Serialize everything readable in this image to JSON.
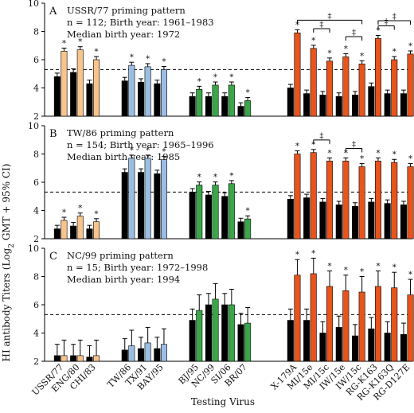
{
  "figure": {
    "y_axis_label": "HI antibody Titers (Log2 GMT + 95% CI)",
    "x_axis_label": "Testing Virus",
    "ylim": [
      2,
      10
    ],
    "y_ticks": [
      2,
      4,
      6,
      8,
      10
    ],
    "significance_marker": "*",
    "comparison_marker": "‡",
    "colors": {
      "baseline": "#000000",
      "ussr_group": "#f8c48c",
      "tw_group": "#9bbde3",
      "nc_group": "#3aa64a",
      "x179_group": "#e8541c"
    }
  },
  "chart_data": [
    {
      "type": "bar",
      "panel": "A",
      "title_lines": [
        "USSR/77 priming pattern",
        "n = 112; Birth year: 1961–1983",
        "Median birth year: 1972"
      ],
      "reference_line": 5.3,
      "groups": [
        {
          "color": "ussr_group",
          "viruses": [
            {
              "name": "USSR/77",
              "values": [
                4.8,
                6.6
              ],
              "stars": [
                false,
                true
              ]
            },
            {
              "name": "ENG/80",
              "values": [
                5.1,
                6.7
              ],
              "stars": [
                false,
                true
              ]
            },
            {
              "name": "CHI/83",
              "values": [
                4.3,
                6.0
              ],
              "stars": [
                false,
                true
              ]
            }
          ]
        },
        {
          "color": "tw_group",
          "viruses": [
            {
              "name": "TW/86",
              "values": [
                4.5,
                5.6
              ],
              "stars": [
                false,
                true
              ]
            },
            {
              "name": "TX/91",
              "values": [
                4.4,
                5.5
              ],
              "stars": [
                false,
                true
              ]
            },
            {
              "name": "BAY/95",
              "values": [
                4.3,
                5.3
              ],
              "stars": [
                false,
                true
              ]
            }
          ]
        },
        {
          "color": "nc_group",
          "viruses": [
            {
              "name": "BJ/95",
              "values": [
                3.4,
                3.9
              ],
              "stars": [
                false,
                true
              ]
            },
            {
              "name": "NC/99",
              "values": [
                3.4,
                4.2
              ],
              "stars": [
                false,
                true
              ]
            },
            {
              "name": "SI/06",
              "values": [
                3.4,
                4.2
              ],
              "stars": [
                false,
                true
              ]
            },
            {
              "name": "BR/07",
              "values": [
                2.7,
                3.1
              ],
              "stars": [
                false,
                true
              ]
            }
          ]
        },
        {
          "color": "x179_group",
          "viruses": [
            {
              "name": "X-179A",
              "values": [
                4.0,
                7.9
              ],
              "stars": [
                false,
                true
              ]
            },
            {
              "name": "MI/15e",
              "values": [
                3.6,
                6.8
              ],
              "stars": [
                false,
                true
              ]
            },
            {
              "name": "MI/15c",
              "values": [
                3.5,
                5.9
              ],
              "stars": [
                false,
                true
              ]
            },
            {
              "name": "IW/15e",
              "values": [
                3.4,
                6.2
              ],
              "stars": [
                false,
                true
              ]
            },
            {
              "name": "IW/15c",
              "values": [
                3.5,
                5.7
              ],
              "stars": [
                false,
                true
              ]
            },
            {
              "name": "RG-K163",
              "values": [
                4.1,
                7.5
              ],
              "stars": [
                false,
                true
              ]
            },
            {
              "name": "RG-K163Q",
              "values": [
                3.6,
                6.0
              ],
              "stars": [
                false,
                true
              ]
            },
            {
              "name": "RG-D127E",
              "values": [
                3.6,
                6.4
              ],
              "stars": [
                false,
                true
              ]
            }
          ]
        }
      ],
      "comparisons": [
        {
          "from": "X-179A",
          "to": "IW/15c",
          "level": 0
        },
        {
          "from": "MI/15e",
          "to": "MI/15c",
          "level": 1
        },
        {
          "from": "IW/15e",
          "to": "IW/15c",
          "level": 2
        },
        {
          "from": "RG-K163",
          "to": "RG-D127E",
          "level": 0
        },
        {
          "from": "RG-K163",
          "to": "RG-K163Q",
          "level": 1
        }
      ]
    },
    {
      "type": "bar",
      "panel": "B",
      "title_lines": [
        "TW/86 priming pattern",
        "n = 154; Birth year: 1965–1996",
        "Median birth year: 1985"
      ],
      "reference_line": 5.3,
      "groups": [
        {
          "color": "ussr_group",
          "viruses": [
            {
              "name": "USSR/77",
              "values": [
                2.7,
                3.3
              ],
              "stars": [
                false,
                true
              ]
            },
            {
              "name": "ENG/80",
              "values": [
                2.9,
                3.6
              ],
              "stars": [
                false,
                true
              ]
            },
            {
              "name": "CHI/83",
              "values": [
                2.7,
                3.2
              ],
              "stars": [
                false,
                true
              ]
            }
          ]
        },
        {
          "color": "tw_group",
          "viruses": [
            {
              "name": "TW/86",
              "values": [
                6.7,
                7.7
              ],
              "stars": [
                false,
                true
              ]
            },
            {
              "name": "TX/91",
              "values": [
                6.7,
                7.7
              ],
              "stars": [
                false,
                true
              ]
            },
            {
              "name": "BAY/95",
              "values": [
                6.6,
                7.6
              ],
              "stars": [
                false,
                true
              ]
            }
          ]
        },
        {
          "color": "nc_group",
          "viruses": [
            {
              "name": "BJ/95",
              "values": [
                5.3,
                5.8
              ],
              "stars": [
                false,
                true
              ]
            },
            {
              "name": "NC/99",
              "values": [
                5.1,
                5.8
              ],
              "stars": [
                false,
                true
              ]
            },
            {
              "name": "SI/06",
              "values": [
                5.0,
                5.9
              ],
              "stars": [
                false,
                true
              ]
            },
            {
              "name": "BR/07",
              "values": [
                3.2,
                3.4
              ],
              "stars": [
                false,
                true
              ]
            }
          ]
        },
        {
          "color": "x179_group",
          "viruses": [
            {
              "name": "X-179A",
              "values": [
                4.8,
                8.0
              ],
              "stars": [
                false,
                true
              ]
            },
            {
              "name": "MI/15e",
              "values": [
                4.9,
                8.1
              ],
              "stars": [
                false,
                true
              ]
            },
            {
              "name": "MI/15c",
              "values": [
                4.6,
                7.5
              ],
              "stars": [
                false,
                true
              ]
            },
            {
              "name": "IW/15e",
              "values": [
                4.4,
                7.5
              ],
              "stars": [
                false,
                true
              ]
            },
            {
              "name": "IW/15c",
              "values": [
                4.3,
                7.1
              ],
              "stars": [
                false,
                true
              ]
            },
            {
              "name": "RG-K163",
              "values": [
                4.6,
                7.5
              ],
              "stars": [
                false,
                true
              ]
            },
            {
              "name": "RG-K163Q",
              "values": [
                4.5,
                7.4
              ],
              "stars": [
                false,
                true
              ]
            },
            {
              "name": "RG-D127E",
              "values": [
                4.4,
                7.1
              ],
              "stars": [
                false,
                true
              ]
            }
          ]
        }
      ],
      "comparisons": [
        {
          "from": "MI/15e",
          "to": "MI/15c",
          "level": 1
        },
        {
          "from": "IW/15e",
          "to": "IW/15c",
          "level": 1
        }
      ]
    },
    {
      "type": "bar",
      "panel": "C",
      "title_lines": [
        "NC/99 priming pattern",
        "n = 15; Birth year: 1972–1998",
        "Median birth year: 1994"
      ],
      "reference_line": 5.3,
      "groups": [
        {
          "color": "ussr_group",
          "viruses": [
            {
              "name": "USSR/77",
              "values": [
                2.4,
                2.4
              ],
              "stars": [
                false,
                false
              ]
            },
            {
              "name": "ENG/80",
              "values": [
                2.4,
                2.4
              ],
              "stars": [
                false,
                false
              ]
            },
            {
              "name": "CHI/83",
              "values": [
                2.3,
                2.4
              ],
              "stars": [
                false,
                false
              ]
            }
          ]
        },
        {
          "color": "tw_group",
          "viruses": [
            {
              "name": "TW/86",
              "values": [
                2.8,
                3.1
              ],
              "stars": [
                false,
                false
              ]
            },
            {
              "name": "TX/91",
              "values": [
                2.9,
                3.3
              ],
              "stars": [
                false,
                false
              ]
            },
            {
              "name": "BAY/95",
              "values": [
                2.9,
                3.2
              ],
              "stars": [
                false,
                false
              ]
            }
          ]
        },
        {
          "color": "nc_group",
          "viruses": [
            {
              "name": "BJ/95",
              "values": [
                4.9,
                5.6
              ],
              "stars": [
                false,
                false
              ]
            },
            {
              "name": "NC/99",
              "values": [
                6.0,
                6.4
              ],
              "stars": [
                false,
                false
              ]
            },
            {
              "name": "SI/06",
              "values": [
                6.0,
                6.0
              ],
              "stars": [
                false,
                false
              ]
            },
            {
              "name": "BR/07",
              "values": [
                4.6,
                4.7
              ],
              "stars": [
                false,
                false
              ]
            }
          ]
        },
        {
          "color": "x179_group",
          "viruses": [
            {
              "name": "X-179A",
              "values": [
                4.9,
                8.1
              ],
              "stars": [
                false,
                true
              ]
            },
            {
              "name": "MI/15e",
              "values": [
                4.9,
                8.2
              ],
              "stars": [
                false,
                true
              ]
            },
            {
              "name": "MI/15c",
              "values": [
                4.0,
                7.3
              ],
              "stars": [
                false,
                true
              ]
            },
            {
              "name": "IW/15e",
              "values": [
                4.4,
                7.0
              ],
              "stars": [
                false,
                true
              ]
            },
            {
              "name": "IW/15c",
              "values": [
                3.8,
                6.9
              ],
              "stars": [
                false,
                true
              ]
            },
            {
              "name": "RG-K163",
              "values": [
                4.3,
                7.3
              ],
              "stars": [
                false,
                true
              ]
            },
            {
              "name": "RG-K163Q",
              "values": [
                4.0,
                7.2
              ],
              "stars": [
                false,
                true
              ]
            },
            {
              "name": "RG-D127E",
              "values": [
                3.9,
                6.7
              ],
              "stars": [
                false,
                true
              ]
            }
          ]
        }
      ],
      "comparisons": []
    }
  ]
}
